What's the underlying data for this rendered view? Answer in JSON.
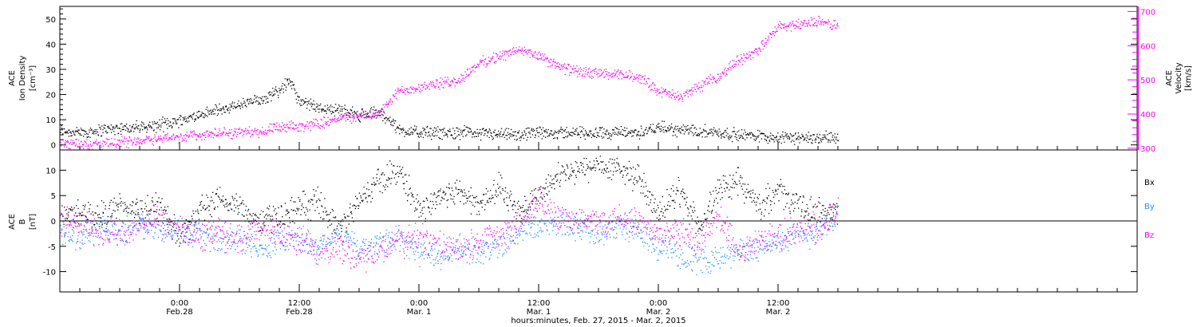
{
  "colors": {
    "black": "#000000",
    "magenta": "#ff00ff",
    "blue": "#1e90ff"
  },
  "x_axis": {
    "title": "hours:minutes, Feb. 27, 2015 - Mar. 2, 2015",
    "range_hours": [
      -12.0,
      96.0
    ],
    "ticks": [
      {
        "hour": 0,
        "time": "0:00",
        "date": "Feb.28"
      },
      {
        "hour": 12,
        "time": "12:00",
        "date": "Feb.28"
      },
      {
        "hour": 24,
        "time": "0:00",
        "date": "Mar. 1"
      },
      {
        "hour": 36,
        "time": "12:00",
        "date": "Mar. 1"
      },
      {
        "hour": 48,
        "time": "0:00",
        "date": "Mar. 2"
      },
      {
        "hour": 60,
        "time": "12:00",
        "date": "Mar. 2"
      }
    ]
  },
  "chart_data": [
    {
      "type": "scatter",
      "panel": "top",
      "ylabel_left": [
        "ACE",
        "Ion Density",
        "[cm⁻³]"
      ],
      "ylabel_right": [
        "ACE",
        "Velocity",
        "[km/s]"
      ],
      "ylim_left": [
        -2,
        55
      ],
      "yticks_left": [
        "0",
        "10",
        "20",
        "30",
        "40",
        "50"
      ],
      "ylim_right": [
        295,
        715
      ],
      "yticks_right": [
        "300",
        "400",
        "500",
        "600",
        "700"
      ],
      "series": [
        {
          "axis": "left",
          "color": "#000000",
          "x": [
            -12,
            -10,
            -8,
            -6,
            -4,
            -2,
            0,
            2,
            4,
            6,
            8,
            10,
            11,
            12,
            14,
            16,
            18,
            20,
            21,
            22,
            24,
            26,
            28,
            30,
            32,
            34,
            36,
            38,
            40,
            42,
            44,
            46,
            48,
            50,
            52,
            54,
            56,
            58,
            60,
            62,
            64,
            66
          ],
          "values": [
            6,
            5,
            6,
            7,
            7,
            8,
            10,
            12,
            14,
            16,
            18,
            22,
            26,
            17,
            15,
            14,
            12,
            13,
            10,
            6,
            5,
            5,
            5,
            5,
            4,
            4,
            5,
            5,
            5,
            5,
            5,
            5,
            7,
            6,
            6,
            5,
            4,
            4,
            3,
            3,
            3,
            3
          ]
        },
        {
          "axis": "right",
          "color": "#ff00ff",
          "x": [
            -12,
            -10,
            -8,
            -6,
            -4,
            -2,
            0,
            2,
            4,
            6,
            8,
            10,
            12,
            14,
            16,
            18,
            20,
            22,
            24,
            26,
            28,
            30,
            32,
            34,
            36,
            38,
            40,
            42,
            44,
            46,
            48,
            50,
            52,
            54,
            56,
            58,
            59,
            60,
            62,
            64,
            66
          ],
          "values": [
            318,
            316,
            312,
            318,
            325,
            330,
            335,
            340,
            345,
            348,
            350,
            360,
            365,
            375,
            390,
            395,
            400,
            470,
            480,
            490,
            500,
            550,
            570,
            590,
            570,
            540,
            525,
            520,
            515,
            510,
            470,
            450,
            480,
            510,
            560,
            590,
            620,
            655,
            665,
            670,
            660
          ]
        }
      ]
    },
    {
      "type": "scatter",
      "panel": "bottom",
      "ylabel_left": [
        "ACE",
        "B",
        "[nT]"
      ],
      "ylim": [
        -14,
        14
      ],
      "yticks": [
        "-10",
        "-5",
        "0",
        "5",
        "10"
      ],
      "legend": [
        "Bx",
        "By",
        "Bz"
      ],
      "series": [
        {
          "name": "Bx",
          "color": "#000000",
          "x": [
            -12,
            -10,
            -8,
            -6,
            -4,
            -2,
            0,
            2,
            4,
            6,
            8,
            10,
            12,
            14,
            16,
            18,
            20,
            22,
            24,
            26,
            28,
            30,
            32,
            34,
            36,
            38,
            40,
            42,
            44,
            46,
            48,
            50,
            52,
            54,
            56,
            58,
            60,
            62,
            64,
            66
          ],
          "values": [
            1,
            2,
            1,
            3,
            2,
            3,
            -3,
            2,
            4,
            3,
            0,
            1,
            3,
            4,
            -2,
            4,
            8,
            10,
            2,
            5,
            6,
            3,
            7,
            2,
            5,
            9,
            10,
            11,
            10,
            9,
            1,
            6,
            -1,
            6,
            8,
            3,
            6,
            3,
            2,
            2
          ]
        },
        {
          "name": "By",
          "color": "#1e90ff",
          "x": [
            -12,
            -10,
            -8,
            -6,
            -4,
            -2,
            0,
            2,
            4,
            6,
            8,
            10,
            12,
            14,
            16,
            18,
            20,
            22,
            24,
            26,
            28,
            30,
            32,
            34,
            36,
            38,
            40,
            42,
            44,
            46,
            48,
            50,
            52,
            54,
            56,
            58,
            60,
            62,
            64,
            66
          ],
          "values": [
            -2,
            -3,
            -1,
            -2,
            0,
            -1,
            -2,
            -3,
            -4,
            -3,
            -6,
            -3,
            -3,
            -5,
            -2,
            -6,
            -4,
            -3,
            -6,
            -7,
            -5,
            -6,
            -5,
            -2,
            -1,
            0,
            -1,
            -2,
            -1,
            -2,
            -5,
            -6,
            -8,
            -7,
            -6,
            -5,
            -4,
            -3,
            -2,
            1
          ]
        },
        {
          "name": "Bz",
          "color": "#ff00ff",
          "x": [
            -12,
            -10,
            -8,
            -6,
            -4,
            -2,
            0,
            2,
            4,
            6,
            8,
            10,
            12,
            14,
            16,
            18,
            20,
            22,
            24,
            26,
            28,
            30,
            32,
            34,
            36,
            38,
            40,
            42,
            44,
            46,
            48,
            50,
            52,
            54,
            56,
            58,
            60,
            62,
            64,
            66
          ],
          "values": [
            0,
            -1,
            -2,
            -3,
            -1,
            0,
            -2,
            -3,
            -2,
            -4,
            -1,
            -3,
            -4,
            -6,
            -5,
            -7,
            -6,
            -4,
            -3,
            -5,
            -6,
            -4,
            -3,
            -1,
            4,
            1,
            0,
            0,
            1,
            0,
            -3,
            -2,
            -5,
            1,
            -6,
            -4,
            -3,
            -2,
            -1,
            2
          ]
        }
      ]
    }
  ]
}
